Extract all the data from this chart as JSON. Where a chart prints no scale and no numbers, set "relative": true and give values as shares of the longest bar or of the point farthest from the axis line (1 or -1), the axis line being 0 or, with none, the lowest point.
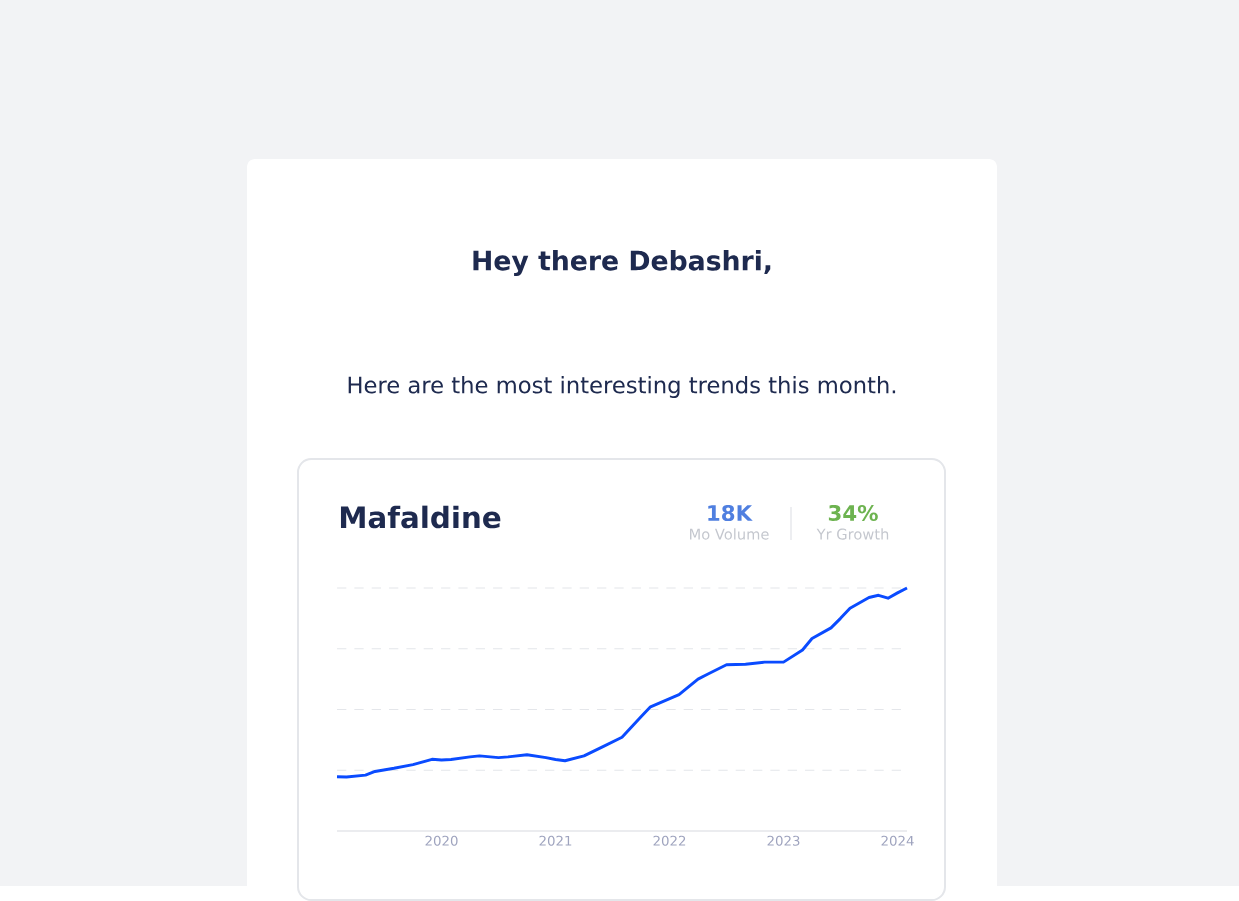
{
  "chart_data": {
    "type": "line",
    "title": "Mafaldine",
    "relative": true,
    "grid": "y",
    "tick_labels": "x",
    "annotations": [
      "Hey there Debashri,",
      "Here are the most interesting trends this month.",
      "18K",
      "Mo Volume",
      "34%",
      "Yr Growth"
    ],
    "x": [
      "2019-02",
      "2019-03",
      "2019-05",
      "2019-06",
      "2019-08",
      "2019-10",
      "2019-12",
      "2020-01",
      "2020-02",
      "2020-04",
      "2020-05",
      "2020-07",
      "2020-08",
      "2020-10",
      "2020-12",
      "2021-01",
      "2021-02",
      "2021-04",
      "2021-06",
      "2021-08",
      "2021-10",
      "2021-11",
      "2022-02",
      "2022-04",
      "2022-05",
      "2022-07",
      "2022-09",
      "2022-11",
      "2023-01",
      "2023-03",
      "2023-04",
      "2023-06",
      "2023-07",
      "2023-08",
      "2023-10",
      "2023-11",
      "2023-12",
      "2024-01",
      "2024-02"
    ],
    "xlim": [
      "2019-02",
      "2024-02"
    ],
    "xticks": [
      "2020",
      "2021",
      "2022",
      "2023",
      "2024"
    ],
    "series": [
      {
        "color": "#0a4bff",
        "values": [
          0.223,
          0.222,
          0.23,
          0.245,
          0.258,
          0.273,
          0.295,
          0.292,
          0.294,
          0.305,
          0.309,
          0.302,
          0.305,
          0.314,
          0.302,
          0.294,
          0.289,
          0.309,
          0.347,
          0.386,
          0.47,
          0.511,
          0.561,
          0.625,
          0.645,
          0.684,
          0.686,
          0.695,
          0.695,
          0.745,
          0.792,
          0.836,
          0.875,
          0.917,
          0.961,
          0.97,
          0.958,
          0.98,
          1.0
        ]
      }
    ]
  }
}
